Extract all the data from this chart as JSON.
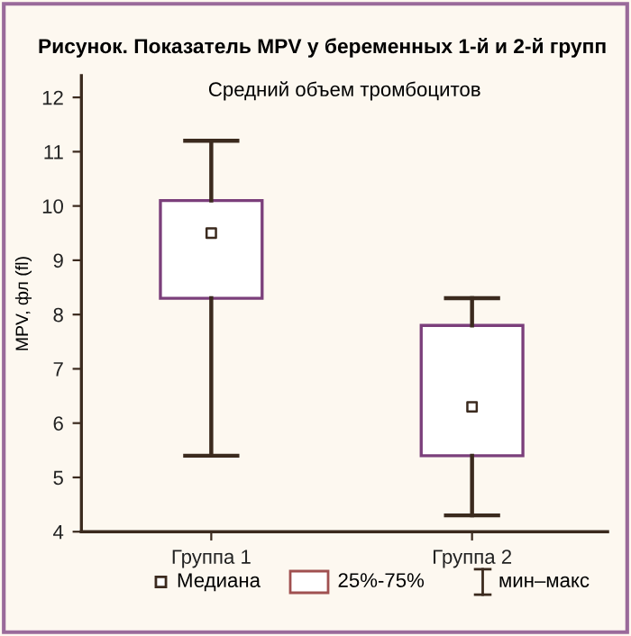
{
  "chart_data": {
    "type": "box",
    "title": "Рисунок. Показатель MPV у беременных 1-й и 2-й групп",
    "subtitle": "Средний объем тромбоцитов",
    "ylabel": "MPV, фл (fl)",
    "categories": [
      "Группа 1",
      "Группа 2"
    ],
    "boxes": [
      {
        "low": 5.4,
        "q1": 8.3,
        "median": 9.5,
        "q3": 10.1,
        "high": 11.2
      },
      {
        "low": 4.3,
        "q1": 5.4,
        "median": 6.3,
        "q3": 7.8,
        "high": 8.3
      }
    ],
    "color": "#7b3f7b",
    "ylim": [
      4,
      12.4
    ],
    "yticks": [
      4,
      5,
      6,
      7,
      8,
      9,
      10,
      11,
      12
    ],
    "marker": "square",
    "grid": false,
    "annotations": [
      "Медиана",
      "25%-75%",
      "мин–макс"
    ]
  }
}
